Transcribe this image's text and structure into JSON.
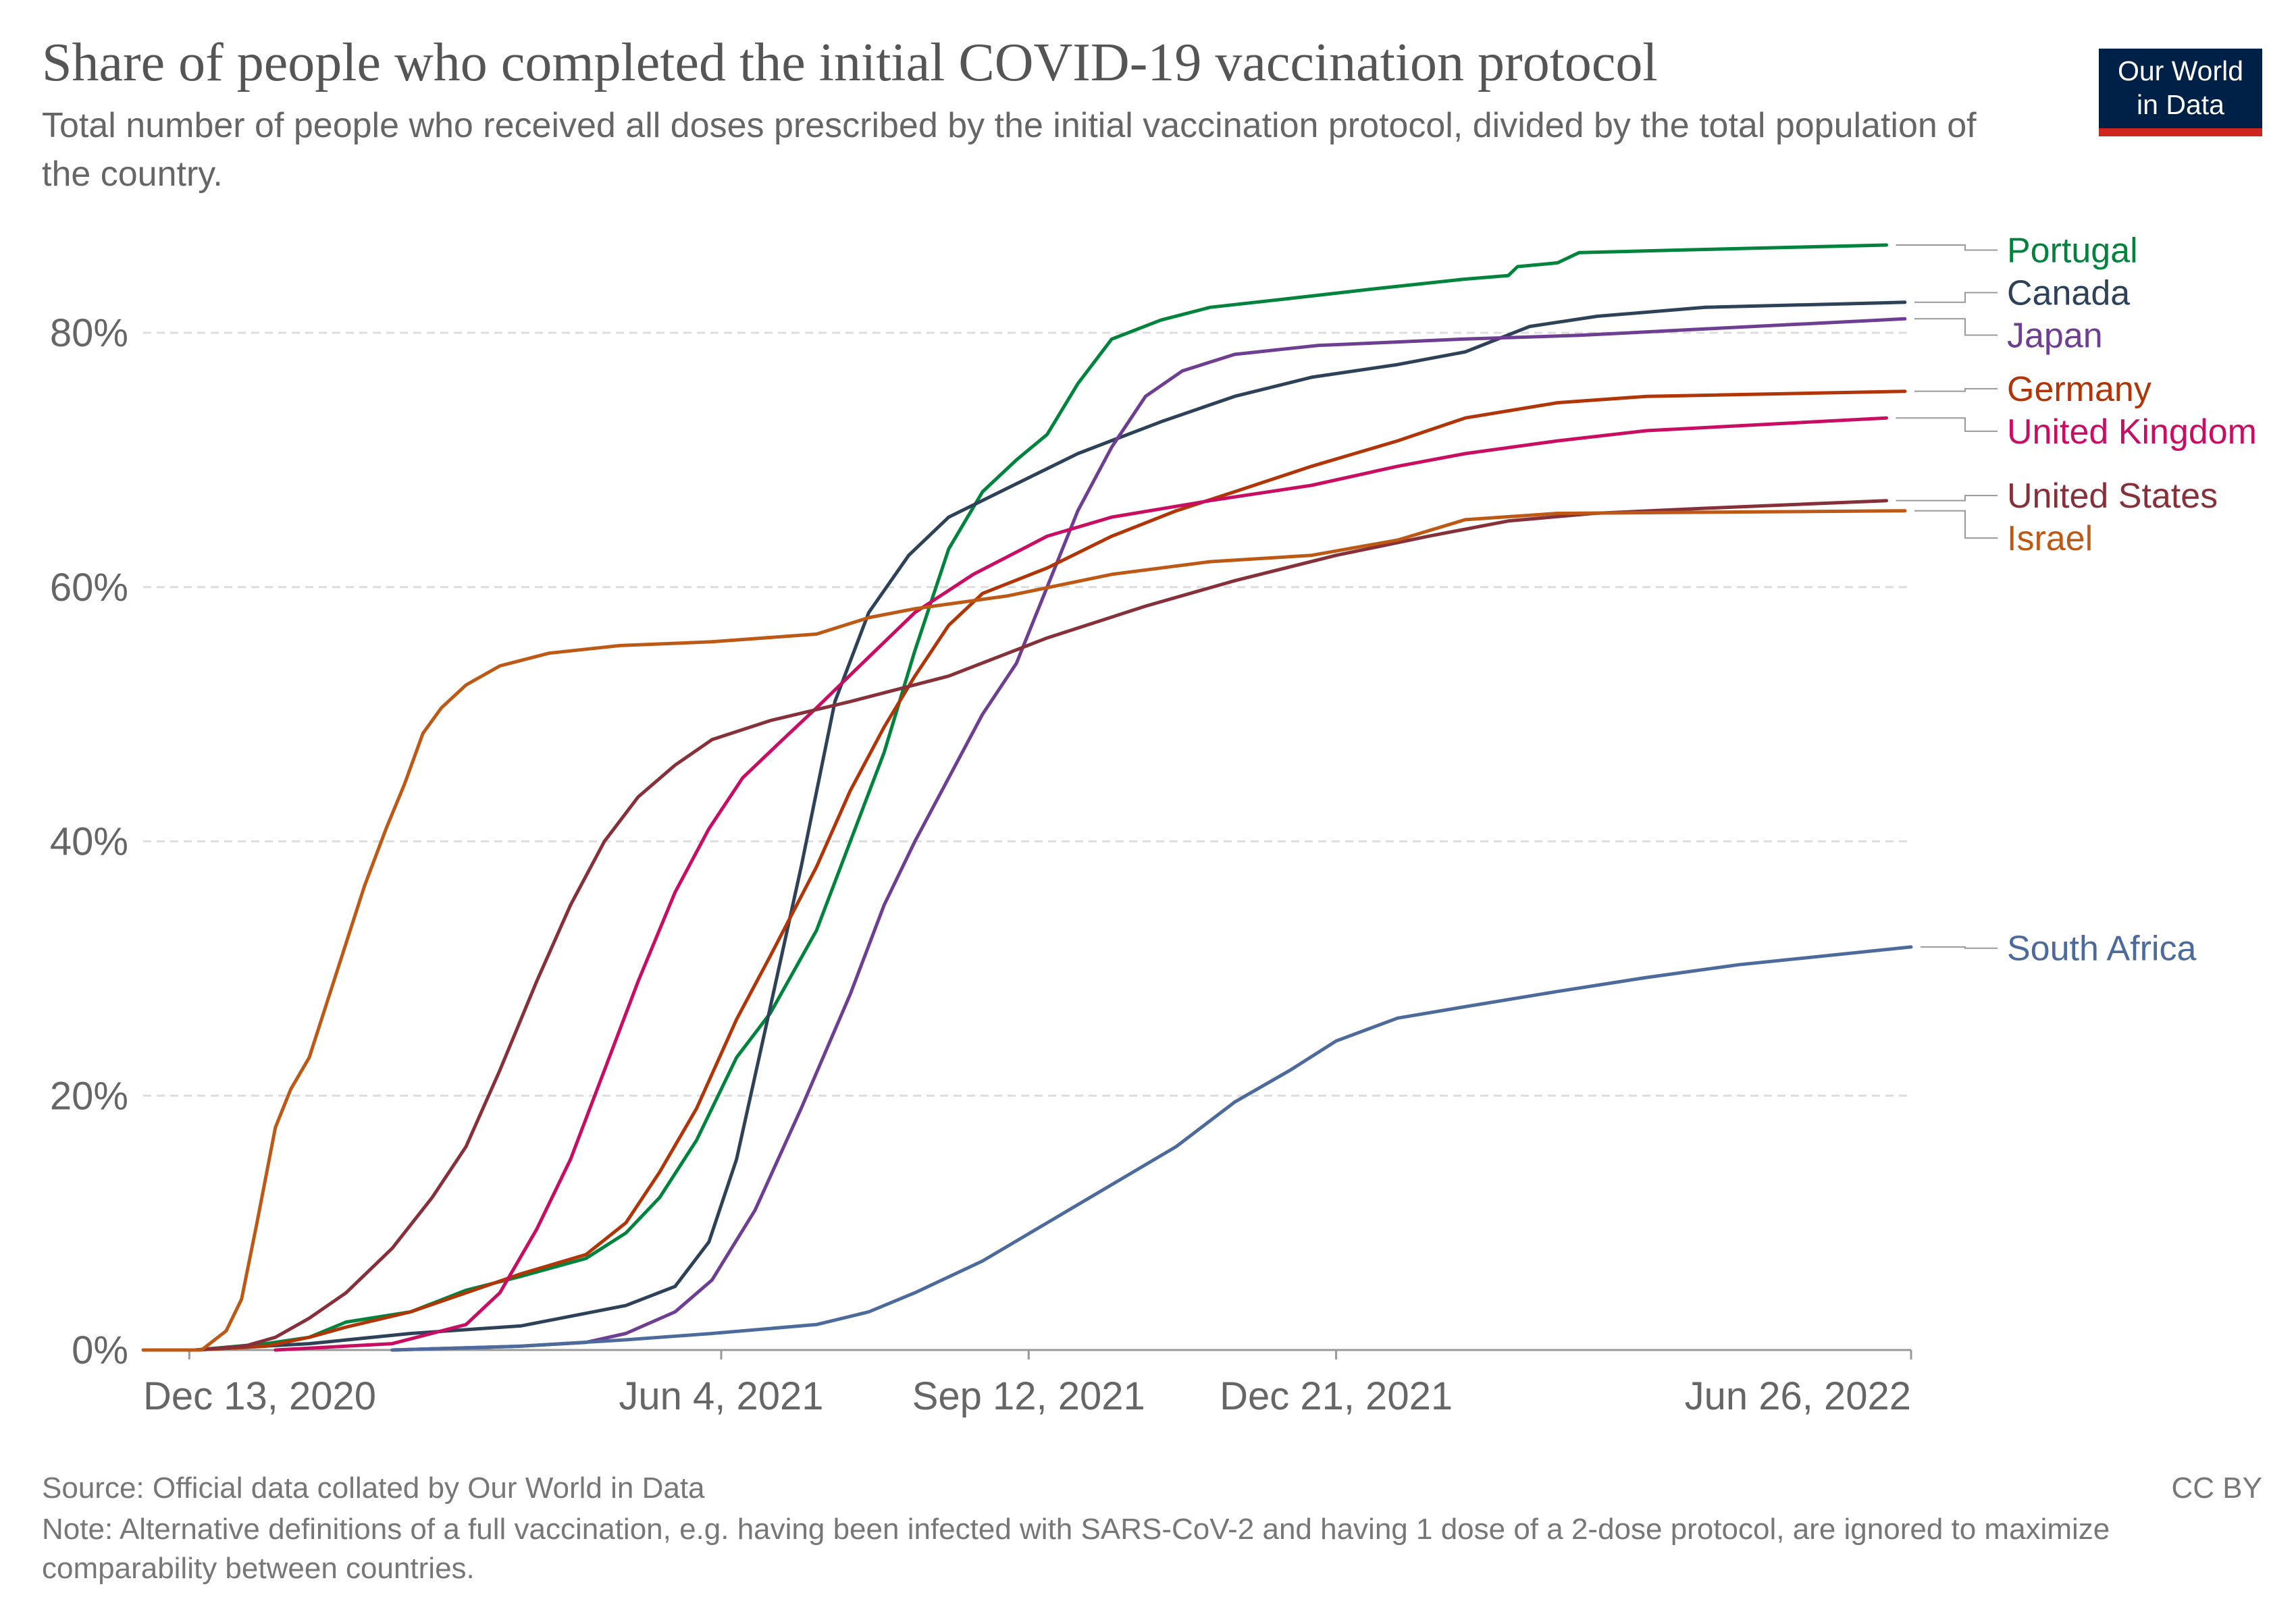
{
  "title": "Share of people who completed the initial COVID-19 vaccination protocol",
  "subtitle": "Total number of people who received all doses prescribed by the initial vaccination protocol, divided by the total population of the country.",
  "logo": {
    "line1": "Our World",
    "line2": "in Data"
  },
  "source": "Source: Official data collated by Our World in Data",
  "note": "Note: Alternative definitions of a full vaccination, e.g. having been infected with SARS-CoV-2 and having 1 dose of a 2-dose protocol, are ignored to maximize comparability between countries.",
  "license": "CC BY",
  "colors": {
    "background": "#ffffff",
    "grid": "#dddddd",
    "axis": "#999999",
    "tick_label": "#666666",
    "connector": "#999999"
  },
  "chart_data": {
    "type": "line",
    "title": "Share of people who completed the initial COVID-19 vaccination protocol",
    "xlabel": "",
    "ylabel": "",
    "x_type": "date",
    "xlim": [
      "2020-11-28",
      "2022-06-26"
    ],
    "ylim": [
      0,
      80
    ],
    "grid": "horizontal dashed",
    "legend": "right, labels at line ends",
    "x_ticks": [
      {
        "date": "2020-12-13",
        "label": "Dec 13, 2020"
      },
      {
        "date": "2021-06-04",
        "label": "Jun 4, 2021"
      },
      {
        "date": "2021-09-12",
        "label": "Sep 12, 2021"
      },
      {
        "date": "2021-12-21",
        "label": "Dec 21, 2021"
      },
      {
        "date": "2022-06-26",
        "label": "Jun 26, 2022"
      }
    ],
    "y_ticks": [
      {
        "value": 0,
        "label": "0%"
      },
      {
        "value": 20,
        "label": "20%"
      },
      {
        "value": 40,
        "label": "40%"
      },
      {
        "value": 60,
        "label": "60%"
      },
      {
        "value": 80,
        "label": "80%"
      }
    ],
    "series": [
      {
        "name": "Portugal",
        "color": "#00843d",
        "label_value": 86.5,
        "points": [
          [
            "2020-12-15",
            0
          ],
          [
            "2021-01-07",
            0.5
          ],
          [
            "2021-01-21",
            1
          ],
          [
            "2021-02-02",
            2.2
          ],
          [
            "2021-02-23",
            3
          ],
          [
            "2021-03-13",
            4.7
          ],
          [
            "2021-03-31",
            5.8
          ],
          [
            "2021-04-21",
            7.2
          ],
          [
            "2021-05-04",
            9.2
          ],
          [
            "2021-05-15",
            12
          ],
          [
            "2021-05-27",
            16.5
          ],
          [
            "2021-06-09",
            23
          ],
          [
            "2021-06-20",
            26.5
          ],
          [
            "2021-07-05",
            33
          ],
          [
            "2021-07-16",
            40
          ],
          [
            "2021-07-27",
            47
          ],
          [
            "2021-08-06",
            55
          ],
          [
            "2021-08-17",
            63
          ],
          [
            "2021-08-28",
            67.5
          ],
          [
            "2021-09-08",
            70
          ],
          [
            "2021-09-18",
            72
          ],
          [
            "2021-09-28",
            76
          ],
          [
            "2021-10-09",
            79.5
          ],
          [
            "2021-10-25",
            81
          ],
          [
            "2021-11-10",
            82
          ],
          [
            "2021-12-06",
            82.7
          ],
          [
            "2022-01-04",
            83.5
          ],
          [
            "2022-01-31",
            84.2
          ],
          [
            "2022-02-15",
            84.5
          ],
          [
            "2022-02-18",
            85.2
          ],
          [
            "2022-03-03",
            85.5
          ],
          [
            "2022-03-10",
            86.3
          ],
          [
            "2022-04-10",
            86.5
          ],
          [
            "2022-06-18",
            86.9
          ]
        ]
      },
      {
        "name": "Canada",
        "color": "#2d4158",
        "label_value": 83.3,
        "points": [
          [
            "2020-12-15",
            0
          ],
          [
            "2021-01-21",
            0.5
          ],
          [
            "2021-02-23",
            1.3
          ],
          [
            "2021-03-31",
            1.9
          ],
          [
            "2021-05-04",
            3.5
          ],
          [
            "2021-05-20",
            5
          ],
          [
            "2021-05-31",
            8.5
          ],
          [
            "2021-06-09",
            15
          ],
          [
            "2021-06-20",
            27
          ],
          [
            "2021-06-30",
            38
          ],
          [
            "2021-07-11",
            51
          ],
          [
            "2021-07-22",
            58
          ],
          [
            "2021-08-04",
            62.5
          ],
          [
            "2021-08-17",
            65.5
          ],
          [
            "2021-09-07",
            68
          ],
          [
            "2021-09-28",
            70.5
          ],
          [
            "2021-10-25",
            73
          ],
          [
            "2021-11-18",
            75
          ],
          [
            "2021-12-13",
            76.5
          ],
          [
            "2022-01-10",
            77.5
          ],
          [
            "2022-02-01",
            78.5
          ],
          [
            "2022-02-22",
            80.5
          ],
          [
            "2022-03-16",
            81.3
          ],
          [
            "2022-04-20",
            82
          ],
          [
            "2022-06-24",
            82.4
          ]
        ]
      },
      {
        "name": "Japan",
        "color": "#6d3e91",
        "label_value": 80.3,
        "points": [
          [
            "2021-02-17",
            0
          ],
          [
            "2021-03-31",
            0.3
          ],
          [
            "2021-04-21",
            0.6
          ],
          [
            "2021-05-04",
            1.3
          ],
          [
            "2021-05-20",
            3
          ],
          [
            "2021-06-01",
            5.5
          ],
          [
            "2021-06-15",
            11
          ],
          [
            "2021-06-30",
            19
          ],
          [
            "2021-07-16",
            28
          ],
          [
            "2021-07-27",
            35
          ],
          [
            "2021-08-06",
            40
          ],
          [
            "2021-08-17",
            45
          ],
          [
            "2021-08-28",
            50
          ],
          [
            "2021-09-08",
            54
          ],
          [
            "2021-09-18",
            60
          ],
          [
            "2021-09-28",
            66
          ],
          [
            "2021-10-09",
            71
          ],
          [
            "2021-10-20",
            75
          ],
          [
            "2021-11-01",
            77
          ],
          [
            "2021-11-18",
            78.3
          ],
          [
            "2021-12-15",
            79
          ],
          [
            "2022-01-31",
            79.5
          ],
          [
            "2022-03-10",
            79.8
          ],
          [
            "2022-04-20",
            80.3
          ],
          [
            "2022-06-24",
            81.1
          ]
        ]
      },
      {
        "name": "Germany",
        "color": "#b13507",
        "label_value": 75.6,
        "points": [
          [
            "2020-12-15",
            0
          ],
          [
            "2021-01-07",
            0.3
          ],
          [
            "2021-01-21",
            1
          ],
          [
            "2021-02-02",
            1.8
          ],
          [
            "2021-02-23",
            3
          ],
          [
            "2021-03-13",
            4.5
          ],
          [
            "2021-03-31",
            6
          ],
          [
            "2021-04-21",
            7.5
          ],
          [
            "2021-05-04",
            10
          ],
          [
            "2021-05-15",
            14
          ],
          [
            "2021-05-27",
            19
          ],
          [
            "2021-06-09",
            26
          ],
          [
            "2021-06-20",
            31
          ],
          [
            "2021-07-05",
            38
          ],
          [
            "2021-07-16",
            44
          ],
          [
            "2021-07-27",
            49
          ],
          [
            "2021-08-06",
            53
          ],
          [
            "2021-08-17",
            57
          ],
          [
            "2021-08-28",
            59.5
          ],
          [
            "2021-09-18",
            61.5
          ],
          [
            "2021-10-09",
            64
          ],
          [
            "2021-10-30",
            66
          ],
          [
            "2021-11-18",
            67.5
          ],
          [
            "2021-12-13",
            69.5
          ],
          [
            "2022-01-10",
            71.5
          ],
          [
            "2022-02-01",
            73.3
          ],
          [
            "2022-03-03",
            74.5
          ],
          [
            "2022-04-01",
            75
          ],
          [
            "2022-06-24",
            75.4
          ]
        ]
      },
      {
        "name": "United Kingdom",
        "color": "#c90d62",
        "label_value": 73,
        "points": [
          [
            "2021-01-10",
            0
          ],
          [
            "2021-02-17",
            0.5
          ],
          [
            "2021-03-13",
            2
          ],
          [
            "2021-03-24",
            4.5
          ],
          [
            "2021-04-05",
            9.5
          ],
          [
            "2021-04-16",
            15
          ],
          [
            "2021-04-27",
            22
          ],
          [
            "2021-05-08",
            29
          ],
          [
            "2021-05-20",
            36
          ],
          [
            "2021-05-31",
            41
          ],
          [
            "2021-06-11",
            45
          ],
          [
            "2021-06-24",
            48
          ],
          [
            "2021-07-05",
            50.5
          ],
          [
            "2021-07-22",
            54.5
          ],
          [
            "2021-08-06",
            58
          ],
          [
            "2021-08-25",
            61
          ],
          [
            "2021-09-18",
            64
          ],
          [
            "2021-10-09",
            65.5
          ],
          [
            "2021-11-10",
            66.8
          ],
          [
            "2021-12-13",
            68
          ],
          [
            "2022-01-10",
            69.5
          ],
          [
            "2022-02-01",
            70.5
          ],
          [
            "2022-03-03",
            71.5
          ],
          [
            "2022-04-01",
            72.3
          ],
          [
            "2022-06-18",
            73.3
          ]
        ]
      },
      {
        "name": "United States",
        "color": "#883039",
        "label_value": 67.2,
        "points": [
          [
            "2020-12-15",
            0
          ],
          [
            "2020-12-31",
            0.3
          ],
          [
            "2021-01-10",
            1
          ],
          [
            "2021-01-21",
            2.5
          ],
          [
            "2021-02-02",
            4.5
          ],
          [
            "2021-02-17",
            8
          ],
          [
            "2021-03-02",
            12
          ],
          [
            "2021-03-13",
            16
          ],
          [
            "2021-03-24",
            22
          ],
          [
            "2021-04-05",
            29
          ],
          [
            "2021-04-16",
            35
          ],
          [
            "2021-04-27",
            40
          ],
          [
            "2021-05-08",
            43.5
          ],
          [
            "2021-05-20",
            46
          ],
          [
            "2021-06-01",
            48
          ],
          [
            "2021-06-20",
            49.5
          ],
          [
            "2021-07-16",
            51
          ],
          [
            "2021-08-17",
            53
          ],
          [
            "2021-09-18",
            56
          ],
          [
            "2021-10-20",
            58.5
          ],
          [
            "2021-11-18",
            60.5
          ],
          [
            "2021-12-21",
            62.5
          ],
          [
            "2022-01-20",
            64
          ],
          [
            "2022-02-15",
            65.2
          ],
          [
            "2022-03-15",
            65.8
          ],
          [
            "2022-04-20",
            66.2
          ],
          [
            "2022-06-18",
            66.8
          ]
        ]
      },
      {
        "name": "Israel",
        "color": "#be5915",
        "label_value": 65.5,
        "points": [
          [
            "2020-11-28",
            0
          ],
          [
            "2020-12-17",
            0
          ],
          [
            "2020-12-25",
            1.5
          ],
          [
            "2020-12-30",
            4
          ],
          [
            "2021-01-04",
            10
          ],
          [
            "2021-01-10",
            17.5
          ],
          [
            "2021-01-15",
            20.5
          ],
          [
            "2021-01-21",
            23
          ],
          [
            "2021-01-27",
            27.5
          ],
          [
            "2021-02-02",
            32
          ],
          [
            "2021-02-08",
            36.5
          ],
          [
            "2021-02-15",
            41
          ],
          [
            "2021-02-21",
            44.5
          ],
          [
            "2021-02-27",
            48.5
          ],
          [
            "2021-03-05",
            50.5
          ],
          [
            "2021-03-13",
            52.3
          ],
          [
            "2021-03-24",
            53.8
          ],
          [
            "2021-04-09",
            54.8
          ],
          [
            "2021-05-02",
            55.4
          ],
          [
            "2021-06-01",
            55.7
          ],
          [
            "2021-07-05",
            56.3
          ],
          [
            "2021-07-22",
            57.6
          ],
          [
            "2021-08-06",
            58.3
          ],
          [
            "2021-09-05",
            59.3
          ],
          [
            "2021-10-09",
            61
          ],
          [
            "2021-11-10",
            62
          ],
          [
            "2021-12-13",
            62.5
          ],
          [
            "2022-01-10",
            63.7
          ],
          [
            "2022-02-01",
            65.3
          ],
          [
            "2022-03-03",
            65.8
          ],
          [
            "2022-06-24",
            66
          ]
        ]
      },
      {
        "name": "South Africa",
        "color": "#4c6a9c",
        "label_value": 31.6,
        "points": [
          [
            "2021-02-17",
            0
          ],
          [
            "2021-03-31",
            0.3
          ],
          [
            "2021-05-04",
            0.8
          ],
          [
            "2021-06-01",
            1.3
          ],
          [
            "2021-07-05",
            2
          ],
          [
            "2021-07-22",
            3
          ],
          [
            "2021-08-06",
            4.5
          ],
          [
            "2021-08-28",
            7
          ],
          [
            "2021-09-18",
            10
          ],
          [
            "2021-10-09",
            13
          ],
          [
            "2021-10-30",
            16
          ],
          [
            "2021-11-18",
            19.5
          ],
          [
            "2021-12-06",
            22
          ],
          [
            "2021-12-21",
            24.3
          ],
          [
            "2022-01-10",
            26.1
          ],
          [
            "2022-02-01",
            27
          ],
          [
            "2022-03-03",
            28.2
          ],
          [
            "2022-04-01",
            29.3
          ],
          [
            "2022-05-01",
            30.3
          ],
          [
            "2022-06-26",
            31.7
          ]
        ]
      }
    ]
  }
}
